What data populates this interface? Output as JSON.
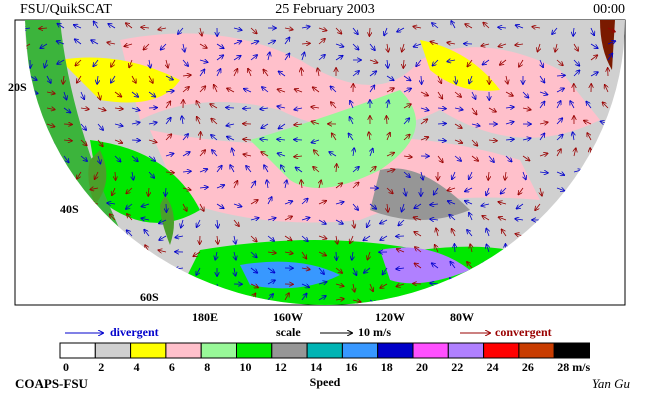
{
  "header": {
    "left": "FSU/QuikSCAT",
    "center": "25 February 2003",
    "right": "00:00"
  },
  "map": {
    "lat_labels": [
      "20S",
      "40S",
      "60S"
    ],
    "lon_labels": [
      "180E",
      "160W",
      "120W",
      "80W"
    ]
  },
  "legend": {
    "divergent": "divergent",
    "scale": "scale",
    "scale_value": "10 m/s",
    "convergent": "convergent"
  },
  "speed_scale": {
    "title": "Speed",
    "labels": [
      "0",
      "2",
      "4",
      "6",
      "8",
      "10",
      "12",
      "14",
      "16",
      "18",
      "20",
      "22",
      "24",
      "26",
      "28 m/s"
    ],
    "colors": [
      "#ffffff",
      "#d0d0d0",
      "#ffff00",
      "#ffc0cb",
      "#98f898",
      "#00e800",
      "#969696",
      "#00b4b4",
      "#3898ff",
      "#0000c8",
      "#ff50ff",
      "#b080ff",
      "#ff0000",
      "#c83c00",
      "#000000"
    ]
  },
  "footer": {
    "left": "COAPS-FSU",
    "right": "Yan Gu"
  }
}
